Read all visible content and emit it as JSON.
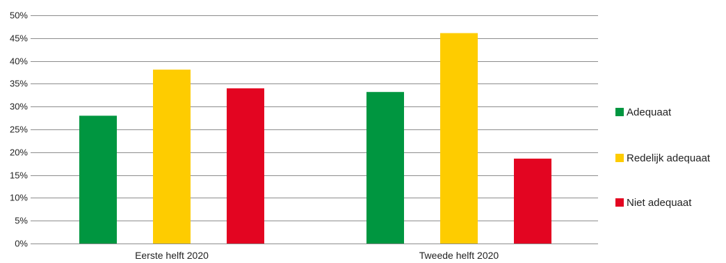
{
  "chart_data": {
    "type": "bar",
    "title": "",
    "xlabel": "",
    "ylabel": "",
    "ylim": [
      0,
      50
    ],
    "y_tick_step": 5,
    "y_tick_labels": [
      "0%",
      "5%",
      "10%",
      "15%",
      "20%",
      "25%",
      "30%",
      "35%",
      "40%",
      "45%",
      "50%"
    ],
    "categories": [
      "Eerste helft 2020",
      "Tweede helft 2020"
    ],
    "series": [
      {
        "name": "Adequaat",
        "color": "#009640",
        "values": [
          28,
          33.2
        ]
      },
      {
        "name": "Redelijk adequaat",
        "color": "#fecc00",
        "values": [
          38.1,
          46.1
        ]
      },
      {
        "name": "Niet adequaat",
        "color": "#e30521",
        "values": [
          34,
          18.6
        ]
      }
    ],
    "grid": true,
    "legend_position": "right"
  }
}
